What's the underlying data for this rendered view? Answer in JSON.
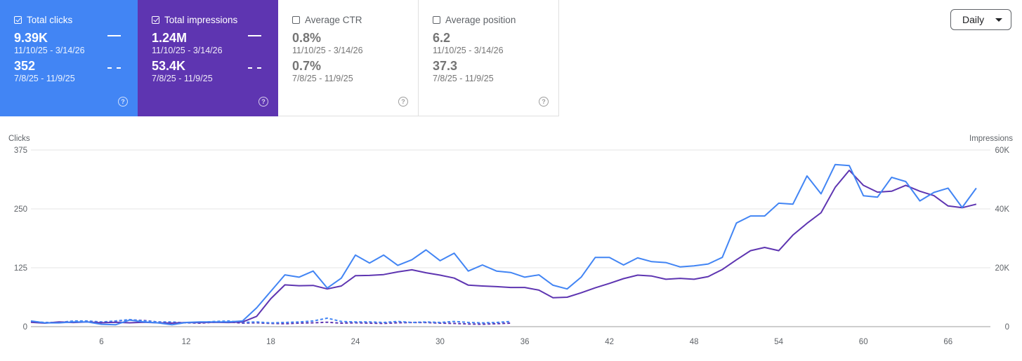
{
  "metrics": [
    {
      "title": "Total clicks",
      "checked": true,
      "color": "#4285f4",
      "current_value": "9.39K",
      "current_range": "11/10/25 - 3/14/26",
      "previous_value": "352",
      "previous_range": "7/8/25 - 11/9/25"
    },
    {
      "title": "Total impressions",
      "checked": true,
      "color": "#5e35b1",
      "current_value": "1.24M",
      "current_range": "11/10/25 - 3/14/26",
      "previous_value": "53.4K",
      "previous_range": "7/8/25 - 11/9/25"
    },
    {
      "title": "Average CTR",
      "checked": false,
      "current_value": "0.8%",
      "current_range": "11/10/25 - 3/14/26",
      "previous_value": "0.7%",
      "previous_range": "7/8/25 - 11/9/25"
    },
    {
      "title": "Average position",
      "checked": false,
      "current_value": "6.2",
      "current_range": "11/10/25 - 3/14/26",
      "previous_value": "37.3",
      "previous_range": "7/8/25 - 11/9/25"
    }
  ],
  "help_glyph": "?",
  "granularity": {
    "label": "Daily",
    "icon": "caret-down-icon"
  },
  "chart_data": {
    "type": "line",
    "ylabel_left": "Clicks",
    "ylabel_right": "Impressions",
    "ylim_left": [
      0,
      375
    ],
    "ylim_right": [
      0,
      60000
    ],
    "yticks_left": [
      "0",
      "125",
      "250",
      "375"
    ],
    "yticks_right": [
      "0",
      "20K",
      "40K",
      "60K"
    ],
    "xlim": [
      1,
      69
    ],
    "xticks": [
      6,
      12,
      18,
      24,
      30,
      36,
      42,
      48,
      54,
      60,
      66
    ],
    "grid": true,
    "colors": {
      "clicks": "#4285f4",
      "impressions": "#5e35b1"
    },
    "series": [
      {
        "name": "Total clicks",
        "axis": "left",
        "style": "solid",
        "values": [
          12,
          8,
          8,
          10,
          10,
          5,
          4,
          14,
          10,
          8,
          4,
          9,
          10,
          10,
          10,
          12,
          40,
          75,
          110,
          105,
          118,
          82,
          103,
          152,
          135,
          152,
          130,
          142,
          163,
          140,
          156,
          118,
          131,
          118,
          115,
          105,
          110,
          88,
          80,
          105,
          147,
          147,
          131,
          146,
          138,
          136,
          127,
          129,
          133,
          147,
          220,
          235,
          235,
          262,
          260,
          320,
          282,
          344,
          342,
          278,
          275,
          317,
          308,
          267,
          285,
          294,
          253,
          294
        ]
      },
      {
        "name": "Total impressions",
        "axis": "right",
        "style": "solid",
        "values": [
          1500,
          1200,
          1600,
          1400,
          1600,
          1300,
          1500,
          1300,
          1500,
          1300,
          1200,
          1400,
          1400,
          1500,
          1400,
          1600,
          3500,
          9500,
          14200,
          13900,
          14000,
          12800,
          13800,
          17300,
          17400,
          17700,
          18600,
          19300,
          18300,
          17500,
          16500,
          14100,
          13800,
          13600,
          13300,
          13300,
          12400,
          9800,
          10000,
          11500,
          13200,
          14700,
          16300,
          17500,
          17200,
          16100,
          16400,
          16100,
          17000,
          19400,
          22700,
          25800,
          26900,
          25800,
          31100,
          35100,
          38700,
          47300,
          53100,
          48000,
          45700,
          46000,
          48000,
          46000,
          44500,
          41000,
          40400,
          41600
        ]
      },
      {
        "name": "Total clicks (previous period)",
        "axis": "left",
        "style": "dashed",
        "values": [
          11,
          9,
          9,
          12,
          12,
          10,
          12,
          15,
          12,
          10,
          10,
          8,
          9,
          11,
          12,
          9,
          10,
          8,
          9,
          10,
          12,
          18,
          11,
          10,
          10,
          9,
          11,
          9,
          10,
          9,
          11,
          9,
          8,
          9,
          11
        ]
      },
      {
        "name": "Total impressions (previous period)",
        "axis": "right",
        "style": "dashed",
        "values": [
          1700,
          1300,
          1400,
          1800,
          1700,
          1500,
          1900,
          2300,
          2100,
          1600,
          1400,
          1300,
          1200,
          1500,
          1600,
          1200,
          1300,
          1100,
          1000,
          1200,
          1300,
          1500,
          1200,
          1300,
          1200,
          1100,
          1300,
          1400,
          1400,
          1200,
          1100,
          900,
          800,
          1000,
          1200
        ]
      }
    ]
  }
}
